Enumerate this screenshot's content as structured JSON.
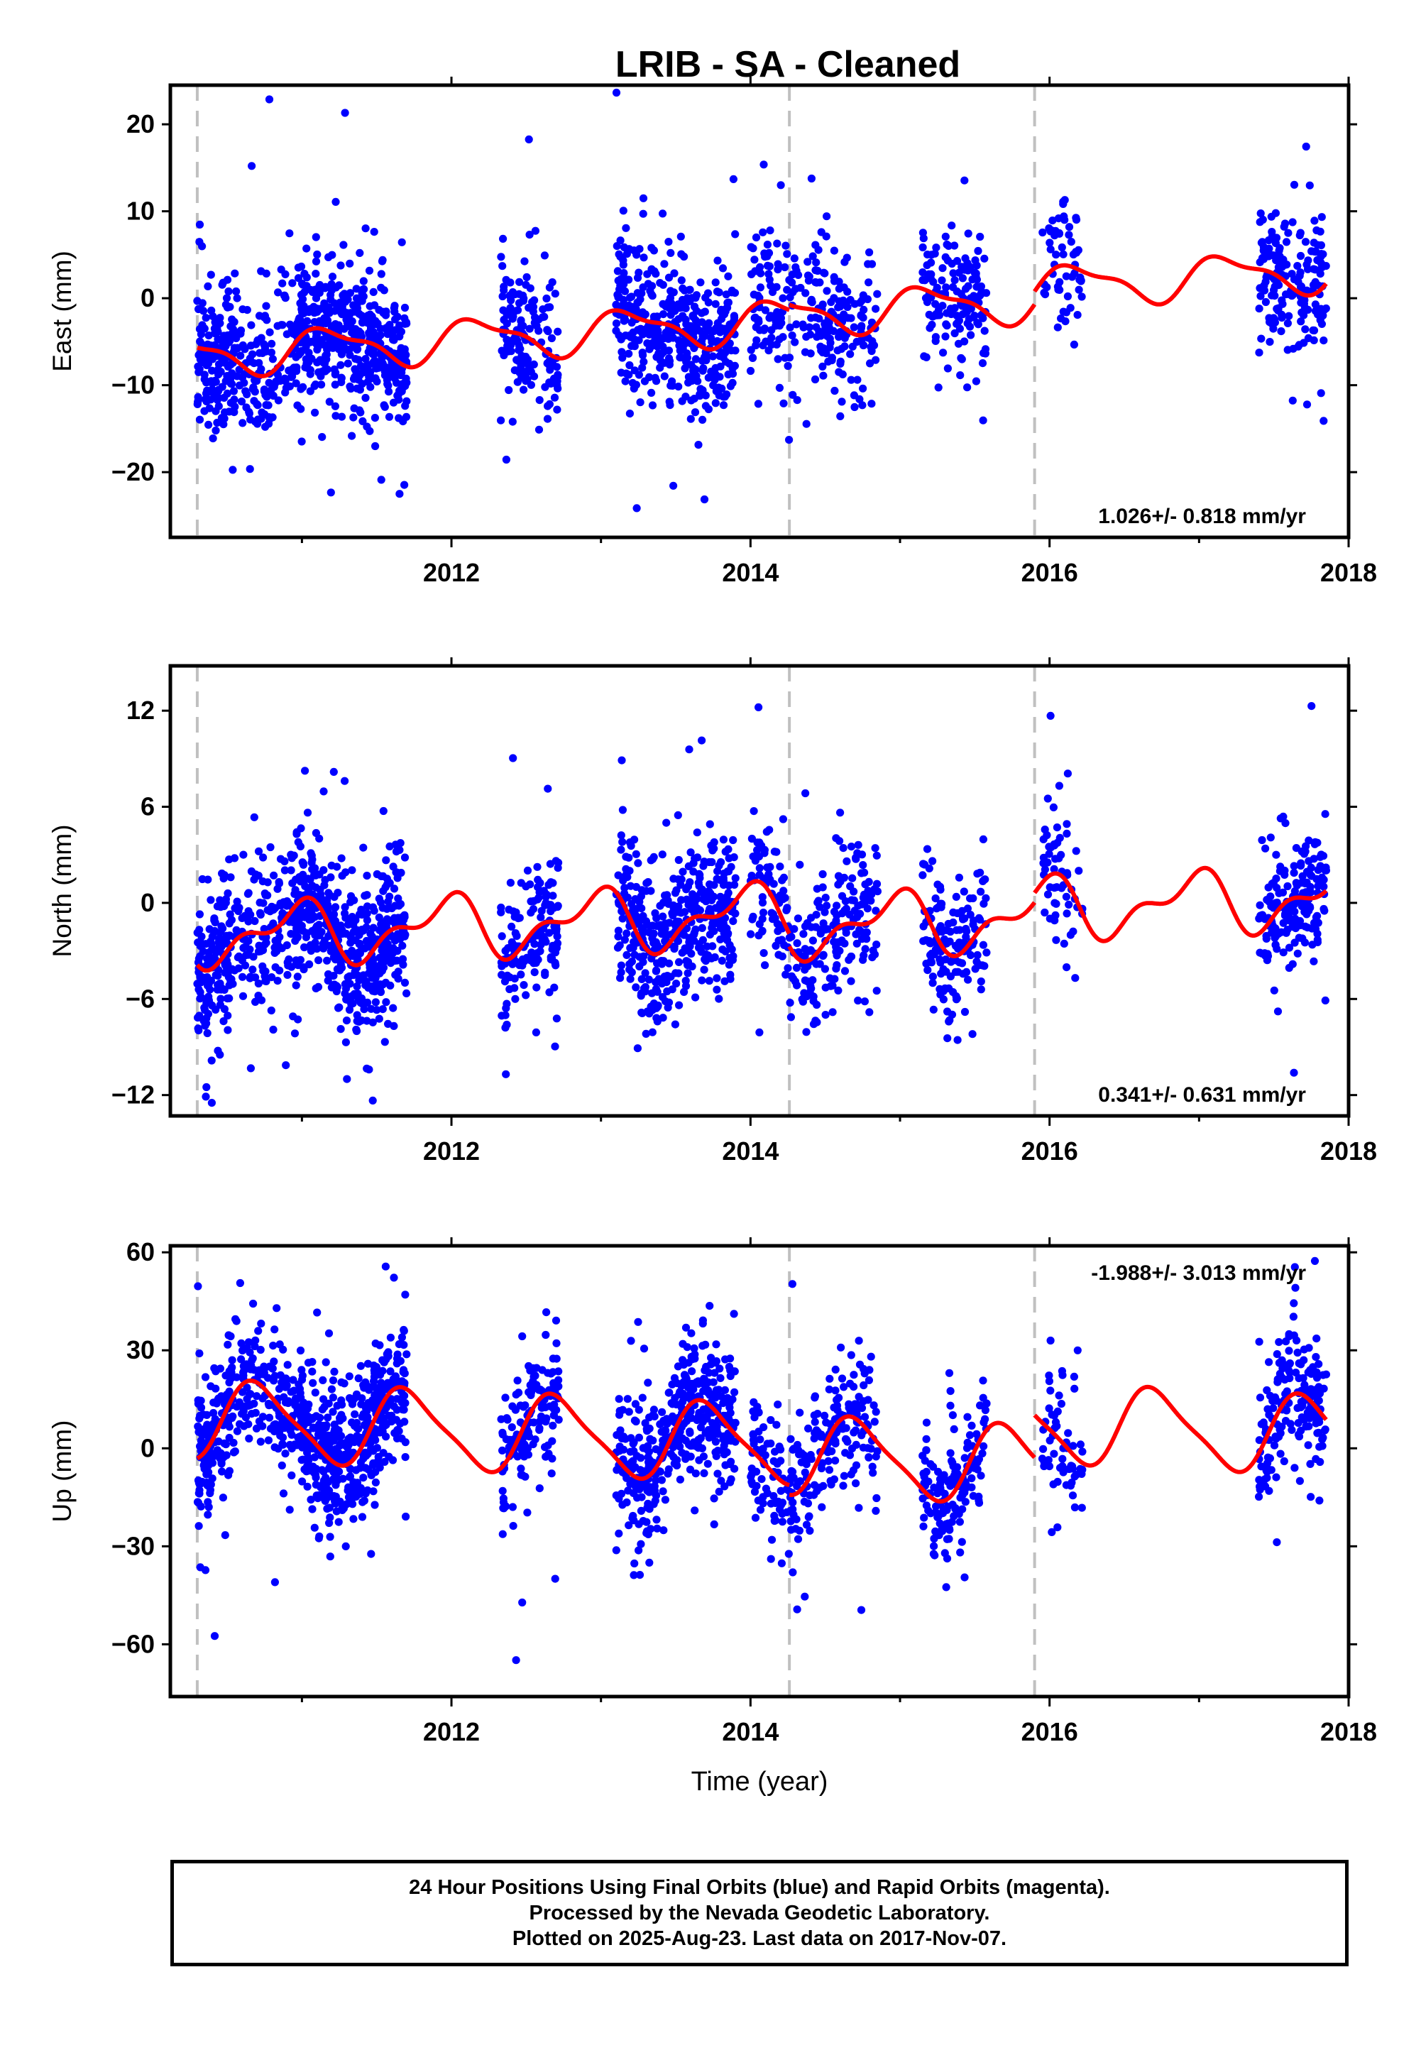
{
  "chart_data": [
    {
      "type": "scatter",
      "title": "LRIB  - SA - Cleaned",
      "ylabel": "East (mm)",
      "xlabel": "",
      "xlim": [
        2010.12,
        2018.0
      ],
      "ylim": [
        -27.5,
        24.5
      ],
      "x_ticks": [
        "2012",
        "2014",
        "2016",
        "2018"
      ],
      "x_tick_values": [
        2012,
        2014,
        2016,
        2018
      ],
      "y_ticks": [
        "−20",
        "−10",
        "0",
        "10",
        "20"
      ],
      "y_tick_values": [
        -20,
        -10,
        0,
        10,
        20
      ],
      "rate_label": "1.026+/- 0.818 mm/yr",
      "rate_position": "bottom-right",
      "offsets": [
        2010.3,
        2014.26,
        2015.9
      ],
      "fit": {
        "base": -2.8,
        "rate": 1.026,
        "annual_amp": 2.2,
        "annual_phase": 0.4,
        "semi_amp": 0.8,
        "semi_phase": 1.3,
        "steps": [
          {
            "at": 2014.26,
            "size": 0.6
          },
          {
            "at": 2015.9,
            "size": 1.5
          }
        ]
      },
      "noise": 4.0,
      "outliers": 0.06,
      "coverage": [
        [
          2010.3,
          2010.55,
          160
        ],
        [
          2010.55,
          2010.95,
          140
        ],
        [
          2010.95,
          2011.7,
          480
        ],
        [
          2012.33,
          2012.72,
          150
        ],
        [
          2013.1,
          2013.9,
          420
        ],
        [
          2014.0,
          2014.85,
          260
        ],
        [
          2015.15,
          2015.58,
          150
        ],
        [
          2015.95,
          2016.22,
          60
        ],
        [
          2017.4,
          2017.85,
          180
        ]
      ],
      "seed": 11,
      "series": [
        {
          "role": "points",
          "color": "#0000ff"
        },
        {
          "role": "fit",
          "color": "#ff0000"
        }
      ]
    },
    {
      "type": "scatter",
      "title": "",
      "ylabel": "North (mm)",
      "xlabel": "",
      "xlim": [
        2010.12,
        2018.0
      ],
      "ylim": [
        -13.3,
        14.8
      ],
      "x_ticks": [
        "2012",
        "2014",
        "2016",
        "2018"
      ],
      "x_tick_values": [
        2012,
        2014,
        2016,
        2018
      ],
      "y_ticks": [
        "−12",
        "−6",
        "0",
        "6",
        "12"
      ],
      "y_tick_values": [
        -12,
        -6,
        0,
        6,
        12
      ],
      "rate_label": "0.341+/- 0.631 mm/yr",
      "rate_position": "bottom-right",
      "offsets": [
        2010.3,
        2014.26,
        2015.9
      ],
      "fit": {
        "base": -0.8,
        "rate": 0.341,
        "annual_amp": 1.6,
        "annual_phase": 1.9,
        "semi_amp": 0.9,
        "semi_phase": 0.6,
        "steps": [
          {
            "at": 2014.26,
            "size": -0.8
          },
          {
            "at": 2015.9,
            "size": 0.6
          }
        ]
      },
      "noise": 2.3,
      "outliers": 0.05,
      "coverage": [
        [
          2010.3,
          2010.55,
          160
        ],
        [
          2010.55,
          2010.95,
          140
        ],
        [
          2010.95,
          2011.7,
          480
        ],
        [
          2012.33,
          2012.72,
          150
        ],
        [
          2013.1,
          2013.9,
          420
        ],
        [
          2014.0,
          2014.85,
          260
        ],
        [
          2015.15,
          2015.58,
          150
        ],
        [
          2015.95,
          2016.22,
          60
        ],
        [
          2017.4,
          2017.85,
          180
        ]
      ],
      "seed": 23,
      "series": [
        {
          "role": "points",
          "color": "#0000ff"
        },
        {
          "role": "fit",
          "color": "#ff0000"
        }
      ]
    },
    {
      "type": "scatter",
      "title": "",
      "ylabel": "Up (mm)",
      "xlabel": "Time (year)",
      "xlim": [
        2010.12,
        2018.0
      ],
      "ylim": [
        -76,
        62
      ],
      "x_ticks": [
        "2012",
        "2014",
        "2016",
        "2018"
      ],
      "x_tick_values": [
        2012,
        2014,
        2016,
        2018
      ],
      "y_ticks": [
        "−60",
        "−30",
        "0",
        "30",
        "60"
      ],
      "y_tick_values": [
        -60,
        -30,
        0,
        30,
        60
      ],
      "rate_label": "-1.988+/- 3.013 mm/yr",
      "rate_position": "top-right",
      "offsets": [
        2010.3,
        2014.26,
        2015.9
      ],
      "fit": {
        "base": 1.5,
        "rate": -1.988,
        "annual_amp": 11.5,
        "annual_phase": -2.9,
        "semi_amp": 2.5,
        "semi_phase": 0.4,
        "steps": [
          {
            "at": 2014.26,
            "size": -3.0
          },
          {
            "at": 2015.9,
            "size": 13.0
          }
        ]
      },
      "noise": 10.5,
      "outliers": 0.05,
      "coverage": [
        [
          2010.3,
          2010.55,
          160
        ],
        [
          2010.55,
          2010.95,
          140
        ],
        [
          2010.95,
          2011.7,
          480
        ],
        [
          2012.33,
          2012.72,
          150
        ],
        [
          2013.1,
          2013.9,
          420
        ],
        [
          2014.0,
          2014.85,
          260
        ],
        [
          2015.15,
          2015.58,
          150
        ],
        [
          2015.95,
          2016.22,
          60
        ],
        [
          2017.4,
          2017.85,
          180
        ]
      ],
      "seed": 37,
      "series": [
        {
          "role": "points",
          "color": "#0000ff"
        },
        {
          "role": "fit",
          "color": "#ff0000"
        }
      ]
    }
  ],
  "footer": {
    "line1": "24 Hour Positions Using Final Orbits (blue) and Rapid Orbits (magenta).",
    "line2": "Processed by the Nevada Geodetic Laboratory.",
    "line3": "Plotted on 2025-Aug-23. Last data on 2017-Nov-07."
  },
  "colors": {
    "points": "#0000ff",
    "fit": "#ff0000",
    "offset_line": "#c0c0c0",
    "frame": "#000000"
  }
}
